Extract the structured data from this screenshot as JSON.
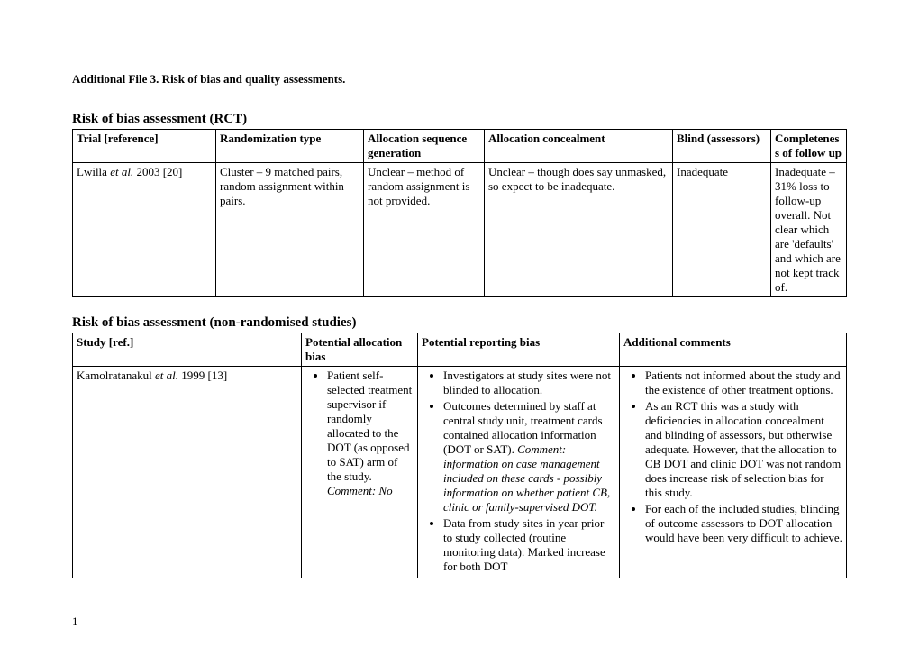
{
  "file_title": "Additional File 3. Risk of bias and quality assessments.",
  "section1": {
    "title": "Risk of bias assessment (RCT)",
    "headers": {
      "trial": "Trial [reference]",
      "randomization": "Randomization type",
      "allocation_seq": "Allocation sequence generation",
      "allocation_conc": "Allocation concealment",
      "blind": "Blind (assessors)",
      "completeness": "Completeness of follow up"
    },
    "row": {
      "trial_prefix": "Lwilla ",
      "trial_italic": "et al.",
      "trial_suffix": " 2003 [20]",
      "randomization": "Cluster – 9 matched pairs, random assignment within pairs.",
      "allocation_seq": "Unclear – method of random assignment is not provided.",
      "allocation_conc": "Unclear – though does say unmasked, so expect to be inadequate.",
      "blind": "Inadequate",
      "completeness": "Inadequate – 31% loss to follow-up overall. Not clear which are 'defaults' and which are not kept track of."
    }
  },
  "section2": {
    "title": "Risk of bias assessment (non-randomised studies)",
    "headers": {
      "study": "Study [ref.]",
      "potential_alloc": "Potential allocation bias",
      "potential_report": "Potential reporting bias",
      "additional": "Additional comments"
    },
    "row": {
      "study_prefix": "Kamolratanakul ",
      "study_italic": "et al.",
      "study_suffix": " 1999 [13]",
      "alloc_bullet_part1": "Patient self-selected treatment supervisor if randomly allocated to the DOT (as opposed to SAT) arm of the study. ",
      "alloc_bullet_italic": "Comment: No",
      "report_b1": "Investigators at study sites were not blinded to allocation.",
      "report_b2_part1": "Outcomes determined by staff at central study unit, treatment cards contained allocation information (DOT or SAT). ",
      "report_b2_italic": "Comment: information on case management included on these cards - possibly information on whether patient CB, clinic or family-supervised DOT.",
      "report_b3": "Data from study sites in year prior to study collected (routine monitoring data). Marked increase for both DOT",
      "add_b1": "Patients not informed about the study and the existence of other treatment options.",
      "add_b2": "As an RCT this was a study with deficiencies in allocation concealment and blinding of assessors, but otherwise adequate. However, that the allocation to CB DOT and clinic DOT was not random does increase risk of selection bias for this study.",
      "add_b3": "For each of the included studies, blinding of outcome assessors to DOT allocation would have been very difficult to achieve."
    }
  },
  "page_number": "1"
}
